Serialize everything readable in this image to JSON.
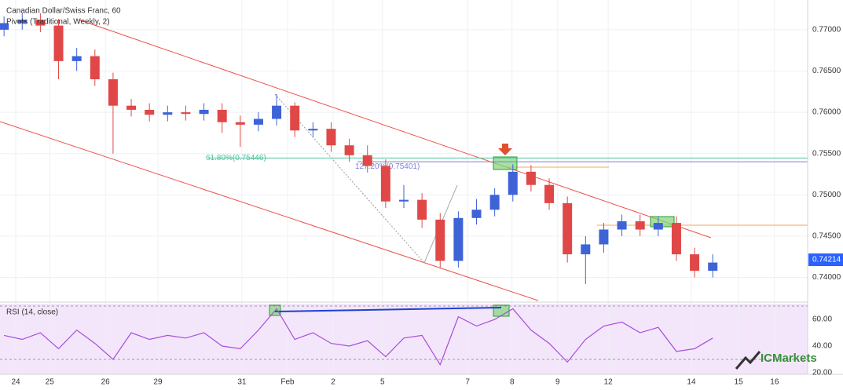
{
  "chart_data": [
    {
      "type": "candlestick",
      "title": "Canadian Dollar/Swiss Franc, 60",
      "subtitle": "Pivots (Traditional, Weekly, 2)",
      "x": [
        0.1,
        0.55,
        1.0,
        1.45,
        1.9,
        2.35,
        2.8,
        3.25,
        3.7,
        4.15,
        4.6,
        5.05,
        5.5,
        5.95,
        6.4,
        6.85,
        7.3,
        7.75,
        8.2,
        8.65,
        9.1,
        9.55,
        10.0,
        10.45,
        10.9,
        11.35,
        11.8,
        12.25,
        12.7,
        13.15,
        13.6,
        14.05,
        14.5,
        14.95,
        15.4,
        15.85,
        16.3,
        16.75,
        17.2,
        17.65
      ],
      "open": [
        0.77,
        0.7708,
        0.7712,
        0.7705,
        0.7662,
        0.7668,
        0.764,
        0.7608,
        0.7603,
        0.7597,
        0.76,
        0.7598,
        0.7603,
        0.7588,
        0.7585,
        0.7592,
        0.7608,
        0.7578,
        0.758,
        0.756,
        0.7548,
        0.7535,
        0.7492,
        0.7494,
        0.747,
        0.742,
        0.7472,
        0.7482,
        0.75,
        0.7528,
        0.7512,
        0.749,
        0.7428,
        0.744,
        0.7458,
        0.7468,
        0.7458,
        0.7466,
        0.7428,
        0.7408
      ],
      "high": [
        0.7716,
        0.772,
        0.772,
        0.7713,
        0.7678,
        0.7676,
        0.7648,
        0.7616,
        0.7611,
        0.7608,
        0.7608,
        0.7611,
        0.7611,
        0.7596,
        0.76,
        0.7622,
        0.7612,
        0.7588,
        0.7588,
        0.7568,
        0.756,
        0.7543,
        0.7512,
        0.7502,
        0.7478,
        0.748,
        0.7495,
        0.7508,
        0.7537,
        0.7536,
        0.752,
        0.7498,
        0.745,
        0.7466,
        0.7476,
        0.7476,
        0.7474,
        0.7474,
        0.7436,
        0.7428
      ],
      "low": [
        0.7692,
        0.77,
        0.7697,
        0.764,
        0.765,
        0.7632,
        0.755,
        0.7595,
        0.7589,
        0.7589,
        0.759,
        0.759,
        0.7575,
        0.7558,
        0.7577,
        0.7584,
        0.757,
        0.757,
        0.7552,
        0.754,
        0.7527,
        0.7484,
        0.7484,
        0.746,
        0.7412,
        0.7412,
        0.7464,
        0.7474,
        0.7492,
        0.7504,
        0.7482,
        0.7418,
        0.7392,
        0.743,
        0.745,
        0.745,
        0.745,
        0.742,
        0.74,
        0.74
      ],
      "close": [
        0.7708,
        0.7712,
        0.7705,
        0.7662,
        0.7668,
        0.764,
        0.7608,
        0.7603,
        0.7597,
        0.76,
        0.7598,
        0.7603,
        0.7588,
        0.7585,
        0.7592,
        0.7608,
        0.7578,
        0.758,
        0.756,
        0.7548,
        0.7535,
        0.7492,
        0.7494,
        0.747,
        0.742,
        0.7472,
        0.7482,
        0.75,
        0.7528,
        0.7512,
        0.749,
        0.7428,
        0.744,
        0.7458,
        0.7468,
        0.7458,
        0.7466,
        0.7428,
        0.7408,
        0.7418
      ],
      "up_color": "#3d63d6",
      "down_color": "#e04848",
      "xlim": [
        0,
        20
      ],
      "xticks": [
        {
          "value": 0.39,
          "label": "24"
        },
        {
          "value": 1.23,
          "label": "25"
        },
        {
          "value": 2.61,
          "label": "26"
        },
        {
          "value": 3.91,
          "label": "29"
        },
        {
          "value": 5.99,
          "label": "31"
        },
        {
          "value": 7.12,
          "label": "Feb"
        },
        {
          "value": 8.25,
          "label": "2"
        },
        {
          "value": 9.47,
          "label": "5"
        },
        {
          "value": 11.58,
          "label": "7"
        },
        {
          "value": 12.68,
          "label": "8"
        },
        {
          "value": 13.81,
          "label": "9"
        },
        {
          "value": 15.06,
          "label": "12"
        },
        {
          "value": 17.12,
          "label": "14"
        },
        {
          "value": 18.29,
          "label": "15"
        },
        {
          "value": 19.18,
          "label": "16"
        }
      ],
      "ylim": [
        0.7372,
        0.7736
      ],
      "yticks": [
        {
          "value": 0.74,
          "label": "0.74000"
        },
        {
          "value": 0.745,
          "label": "0.74500"
        },
        {
          "value": 0.75,
          "label": "0.75000"
        },
        {
          "value": 0.755,
          "label": "0.75500"
        },
        {
          "value": 0.76,
          "label": "0.76000"
        },
        {
          "value": 0.765,
          "label": "0.76500"
        },
        {
          "value": 0.77,
          "label": "0.77000"
        }
      ],
      "grid": true,
      "last_price": 0.74214,
      "last_price_color": "#2962ff",
      "annotations": [
        {
          "text": "61.80%(0.75446)",
          "value": 0.75446,
          "color": "#4fc49f"
        },
        {
          "text": "127.20%(0.75401)",
          "value": 0.75401,
          "color": "#7c80d6"
        }
      ]
    },
    {
      "type": "line",
      "title": "RSI (14, close)",
      "x": [
        0.1,
        0.55,
        1.0,
        1.45,
        1.9,
        2.35,
        2.8,
        3.25,
        3.7,
        4.15,
        4.6,
        5.05,
        5.5,
        5.95,
        6.4,
        6.85,
        7.3,
        7.75,
        8.2,
        8.65,
        9.1,
        9.55,
        10.0,
        10.45,
        10.9,
        11.35,
        11.8,
        12.25,
        12.7,
        13.15,
        13.6,
        14.05,
        14.5,
        14.95,
        15.4,
        15.85,
        16.3,
        16.75,
        17.2,
        17.65
      ],
      "values": [
        48,
        45,
        50,
        38,
        52,
        42,
        30,
        50,
        45,
        48,
        46,
        50,
        40,
        38,
        52,
        68,
        45,
        50,
        42,
        40,
        44,
        32,
        46,
        48,
        26,
        62,
        55,
        60,
        68,
        52,
        42,
        28,
        45,
        55,
        58,
        50,
        54,
        36,
        38,
        46
      ],
      "color": "#a64ed9",
      "xlim": [
        0,
        20
      ],
      "ylim": [
        18.8,
        71.8
      ],
      "yticks": [
        {
          "value": 20,
          "label": "20.00"
        },
        {
          "value": 40,
          "label": "40.00"
        },
        {
          "value": 60,
          "label": "60.00"
        }
      ],
      "bands": [
        30,
        70
      ]
    }
  ],
  "logo": "ICMarkets"
}
